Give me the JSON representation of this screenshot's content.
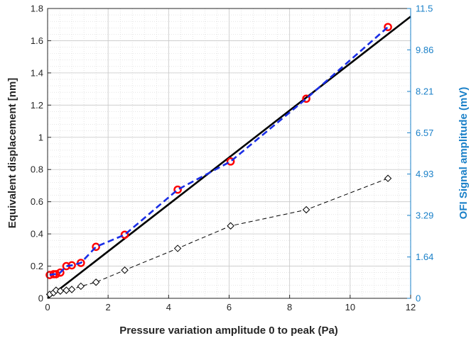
{
  "chart_data": {
    "type": "line",
    "xlabel": "Pressure variation amplitude 0 to peak (Pa)",
    "ylabel_left": "Equivalent displacement [nm]",
    "ylabel_right": "OFI Signal amplitude (mV)",
    "xlim": [
      0,
      12
    ],
    "ylim_left": [
      0,
      1.8
    ],
    "ylim_right": [
      0,
      11.5
    ],
    "x_ticks": [
      "0",
      "2",
      "4",
      "6",
      "8",
      "10",
      "12"
    ],
    "y_ticks_left": [
      "0",
      "0.2",
      "0.4",
      "0.6",
      "0.8",
      "1",
      "1.2",
      "1.4",
      "1.6",
      "1.8"
    ],
    "y_ticks_right": [
      "0",
      "1.64",
      "3.29",
      "4.93",
      "6.57",
      "8.21",
      "9.86",
      "11.5"
    ],
    "grid": true,
    "minor_grid": true,
    "colors": {
      "axis_left": "#000000",
      "axis_right": "#1a80c8",
      "fit_line": "#000000",
      "measured": "#ff0000",
      "dashed_blue": "#1a2ee6",
      "diamonds": "#000000",
      "grid": "#d6d6d6"
    },
    "series": [
      {
        "type": "line",
        "style": "solid",
        "axis": "left",
        "x": [
          0,
          12
        ],
        "y": [
          0,
          1.75
        ]
      },
      {
        "type": "line",
        "style": "dashed",
        "marker": "circle",
        "axis": "left",
        "x": [
          0.07,
          0.2,
          0.28,
          0.42,
          0.62,
          0.8,
          1.1,
          1.6,
          2.55,
          4.3,
          6.05,
          8.55,
          11.25
        ],
        "y": [
          0.145,
          0.15,
          0.15,
          0.16,
          0.2,
          0.205,
          0.22,
          0.32,
          0.395,
          0.675,
          0.85,
          1.24,
          1.685
        ]
      },
      {
        "type": "line",
        "style": "dashed",
        "marker": "diamond",
        "axis": "left",
        "x": [
          0.07,
          0.2,
          0.28,
          0.42,
          0.62,
          0.8,
          1.1,
          1.6,
          2.55,
          4.3,
          6.05,
          8.55,
          11.25
        ],
        "y": [
          0.025,
          0.035,
          0.05,
          0.045,
          0.05,
          0.055,
          0.075,
          0.1,
          0.175,
          0.31,
          0.45,
          0.55,
          0.745
        ]
      }
    ]
  }
}
